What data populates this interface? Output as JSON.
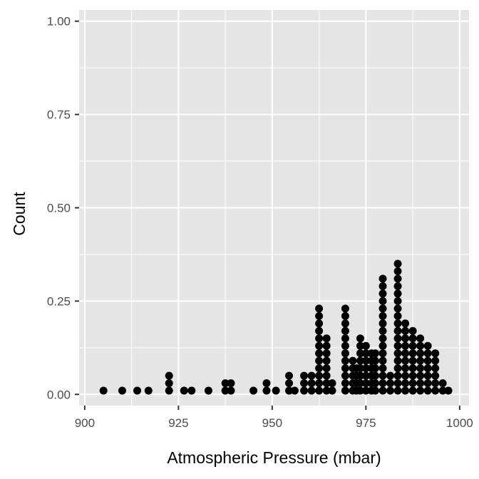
{
  "chart_data": {
    "type": "dotplot",
    "xlabel": "Atmospheric Pressure (mbar)",
    "ylabel": "Count",
    "xlim": [
      898.5,
      1002.5
    ],
    "ylim": [
      -0.03,
      1.03
    ],
    "x_ticks": [
      900,
      925,
      950,
      975,
      1000
    ],
    "y_ticks": [
      0.0,
      0.25,
      0.5,
      0.75,
      1.0
    ],
    "y_tick_labels": [
      "0.00",
      "0.25",
      "0.50",
      "0.75",
      "1.00"
    ],
    "grid": true,
    "dot_count_step": 0.02,
    "colors": {
      "panel": "#e5e5e5",
      "grid": "#ffffff",
      "dot": "#000000",
      "tick": "#333333"
    },
    "stacks": [
      {
        "x": 905,
        "count": 1
      },
      {
        "x": 910,
        "count": 1
      },
      {
        "x": 914,
        "count": 1
      },
      {
        "x": 917,
        "count": 1
      },
      {
        "x": 922.5,
        "count": 3
      },
      {
        "x": 926.5,
        "count": 1
      },
      {
        "x": 928.5,
        "count": 1
      },
      {
        "x": 933,
        "count": 1
      },
      {
        "x": 937.5,
        "count": 2
      },
      {
        "x": 939,
        "count": 2
      },
      {
        "x": 945,
        "count": 1
      },
      {
        "x": 948.5,
        "count": 2
      },
      {
        "x": 951,
        "count": 1
      },
      {
        "x": 954.5,
        "count": 3
      },
      {
        "x": 956,
        "count": 1
      },
      {
        "x": 958.5,
        "count": 3
      },
      {
        "x": 960.5,
        "count": 3
      },
      {
        "x": 962.5,
        "count": 12
      },
      {
        "x": 964.5,
        "count": 8
      },
      {
        "x": 966,
        "count": 2
      },
      {
        "x": 969.5,
        "count": 12
      },
      {
        "x": 971.5,
        "count": 5
      },
      {
        "x": 972.5,
        "count": 4
      },
      {
        "x": 973.5,
        "count": 8
      },
      {
        "x": 975,
        "count": 7
      },
      {
        "x": 976.5,
        "count": 6
      },
      {
        "x": 977.5,
        "count": 6
      },
      {
        "x": 979.5,
        "count": 16
      },
      {
        "x": 981.5,
        "count": 3
      },
      {
        "x": 983.5,
        "count": 18
      },
      {
        "x": 985.5,
        "count": 10
      },
      {
        "x": 987.5,
        "count": 9
      },
      {
        "x": 989.5,
        "count": 8
      },
      {
        "x": 991.5,
        "count": 7
      },
      {
        "x": 993.5,
        "count": 6
      },
      {
        "x": 995.5,
        "count": 2
      },
      {
        "x": 997,
        "count": 1
      }
    ]
  }
}
